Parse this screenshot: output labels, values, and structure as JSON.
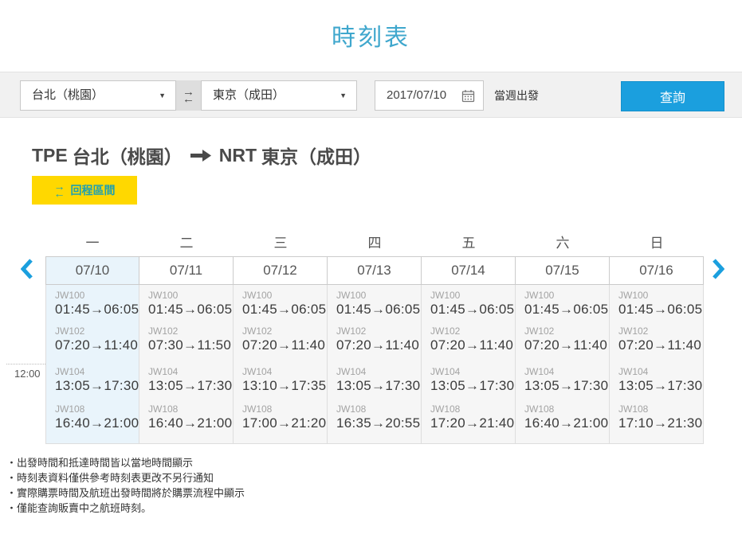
{
  "page": {
    "title": "時刻表"
  },
  "colors": {
    "accent_blue": "#1b9fde",
    "title_blue": "#3fa7cd",
    "highlight_yellow": "#ffd800",
    "return_teal": "#1fa0b0",
    "selected_day_bg": "#e9f4fb"
  },
  "icons": {
    "dropdown_caret": "▼",
    "swap_top": "→",
    "swap_bottom": "←",
    "prev": "chevron-left",
    "next": "chevron-right",
    "calendar": "calendar-outline",
    "route_arrow": "arrow-right"
  },
  "search": {
    "origin_value": "台北（桃園）",
    "destination_value": "東京（成田）",
    "date_value": "2017/07/10",
    "depart_week_label": "當週出發",
    "submit_label": "查詢"
  },
  "route": {
    "origin_code": "TPE",
    "origin_name": "台北（桃園）",
    "dest_code": "NRT",
    "dest_name": "東京（成田）"
  },
  "return_button": {
    "label": "回程區間"
  },
  "timetable": {
    "noon_label": "12:00",
    "columns": [
      {
        "weekday": "一",
        "date": "07/10",
        "selected": true,
        "flights": [
          {
            "no": "JW100",
            "time": "01:45→06:05"
          },
          {
            "no": "JW102",
            "time": "07:20→11:40"
          },
          {
            "no": "JW104",
            "time": "13:05→17:30"
          },
          {
            "no": "JW108",
            "time": "16:40→21:00"
          }
        ]
      },
      {
        "weekday": "二",
        "date": "07/11",
        "selected": false,
        "flights": [
          {
            "no": "JW100",
            "time": "01:45→06:05"
          },
          {
            "no": "JW102",
            "time": "07:30→11:50"
          },
          {
            "no": "JW104",
            "time": "13:05→17:30"
          },
          {
            "no": "JW108",
            "time": "16:40→21:00"
          }
        ]
      },
      {
        "weekday": "三",
        "date": "07/12",
        "selected": false,
        "flights": [
          {
            "no": "JW100",
            "time": "01:45→06:05"
          },
          {
            "no": "JW102",
            "time": "07:20→11:40"
          },
          {
            "no": "JW104",
            "time": "13:10→17:35"
          },
          {
            "no": "JW108",
            "time": "17:00→21:20"
          }
        ]
      },
      {
        "weekday": "四",
        "date": "07/13",
        "selected": false,
        "flights": [
          {
            "no": "JW100",
            "time": "01:45→06:05"
          },
          {
            "no": "JW102",
            "time": "07:20→11:40"
          },
          {
            "no": "JW104",
            "time": "13:05→17:30"
          },
          {
            "no": "JW108",
            "time": "16:35→20:55"
          }
        ]
      },
      {
        "weekday": "五",
        "date": "07/14",
        "selected": false,
        "flights": [
          {
            "no": "JW100",
            "time": "01:45→06:05"
          },
          {
            "no": "JW102",
            "time": "07:20→11:40"
          },
          {
            "no": "JW104",
            "time": "13:05→17:30"
          },
          {
            "no": "JW108",
            "time": "17:20→21:40"
          }
        ]
      },
      {
        "weekday": "六",
        "date": "07/15",
        "selected": false,
        "flights": [
          {
            "no": "JW100",
            "time": "01:45→06:05"
          },
          {
            "no": "JW102",
            "time": "07:20→11:40"
          },
          {
            "no": "JW104",
            "time": "13:05→17:30"
          },
          {
            "no": "JW108",
            "time": "16:40→21:00"
          }
        ]
      },
      {
        "weekday": "日",
        "date": "07/16",
        "selected": false,
        "flights": [
          {
            "no": "JW100",
            "time": "01:45→06:05"
          },
          {
            "no": "JW102",
            "time": "07:20→11:40"
          },
          {
            "no": "JW104",
            "time": "13:05→17:30"
          },
          {
            "no": "JW108",
            "time": "17:10→21:30"
          }
        ]
      }
    ]
  },
  "footnotes": [
    "・出發時間和抵達時間皆以當地時間顯示",
    "・時刻表資料僅供參考時刻表更改不另行通知",
    "・實際購票時間及航班出發時間將於購票流程中顯示",
    "・僅能查詢販賣中之航班時刻。"
  ]
}
